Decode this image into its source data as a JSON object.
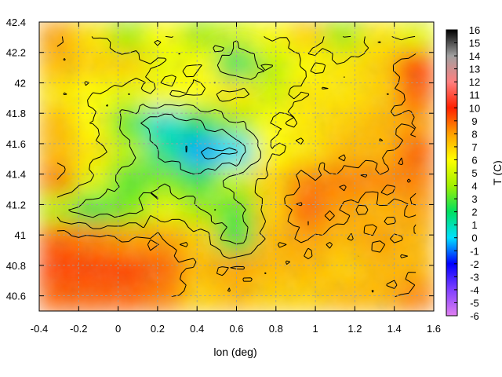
{
  "chart_data": {
    "type": "heatmap",
    "title": "",
    "xlabel": "lon (deg)",
    "ylabel": "",
    "colorbar_label": "T (C)",
    "xlim": [
      -0.4,
      1.6
    ],
    "ylim": [
      40.5,
      42.4
    ],
    "x_ticks": [
      "-0.4",
      "-0.2",
      "0",
      "0.2",
      "0.4",
      "0.6",
      "0.8",
      "1",
      "1.2",
      "1.4",
      "1.6"
    ],
    "y_ticks": [
      "40.6",
      "40.8",
      "41",
      "41.2",
      "41.4",
      "41.6",
      "41.8",
      "42",
      "42.2",
      "42.4"
    ],
    "colorbar_ticks": [
      "-6",
      "-5",
      "-4",
      "-3",
      "-2",
      "-1",
      "0",
      "1",
      "2",
      "3",
      "4",
      "5",
      "6",
      "7",
      "8",
      "9",
      "10",
      "11",
      "12",
      "13",
      "14",
      "15",
      "16"
    ],
    "colorbar_range": [
      -6,
      16
    ],
    "grid": true,
    "contours": true,
    "colormap": [
      {
        "t": -6,
        "color": "#e080f0"
      },
      {
        "t": -4,
        "color": "#8040ff"
      },
      {
        "t": -2,
        "color": "#0000ff"
      },
      {
        "t": 0,
        "color": "#00e0ff"
      },
      {
        "t": 2,
        "color": "#00e060"
      },
      {
        "t": 4,
        "color": "#a0f000"
      },
      {
        "t": 6,
        "color": "#ffff00"
      },
      {
        "t": 8,
        "color": "#ffa000"
      },
      {
        "t": 10,
        "color": "#ff2000"
      },
      {
        "t": 12,
        "color": "#ff8080"
      },
      {
        "t": 14,
        "color": "#a0a0a0"
      },
      {
        "t": 16,
        "color": "#000000"
      }
    ],
    "field": [
      [
        8,
        6.5,
        4,
        6,
        4,
        5,
        6,
        7,
        4,
        6.5,
        5.5
      ],
      [
        7.5,
        7,
        7,
        5.5,
        6,
        2,
        4.5,
        6,
        6.5,
        7,
        9.5
      ],
      [
        6.5,
        6,
        5.5,
        6,
        6,
        6.5,
        5,
        6.5,
        6.5,
        7,
        9
      ],
      [
        7.5,
        6,
        3,
        0.5,
        2,
        4,
        6,
        6.5,
        7,
        7.5,
        8
      ],
      [
        7.5,
        6.5,
        4.5,
        1.5,
        -0.5,
        0,
        6,
        6.5,
        7.5,
        7.5,
        9
      ],
      [
        8.5,
        5.5,
        3,
        3.5,
        2.5,
        5,
        7,
        8.5,
        8.5,
        8.5,
        8.5
      ],
      [
        4.5,
        2.5,
        3.5,
        5.5,
        4,
        3,
        7,
        9,
        8,
        7.5,
        8
      ],
      [
        9,
        8.5,
        8,
        8,
        7,
        2.5,
        7.5,
        8,
        7.5,
        8,
        7.5
      ],
      [
        9.5,
        9.5,
        9.5,
        9,
        7.5,
        8,
        7.5,
        7.5,
        7,
        7.5,
        7.5
      ],
      [
        9,
        9,
        9,
        8.5,
        7,
        7.5,
        7,
        7,
        7.5,
        7.5,
        8.5
      ]
    ]
  }
}
